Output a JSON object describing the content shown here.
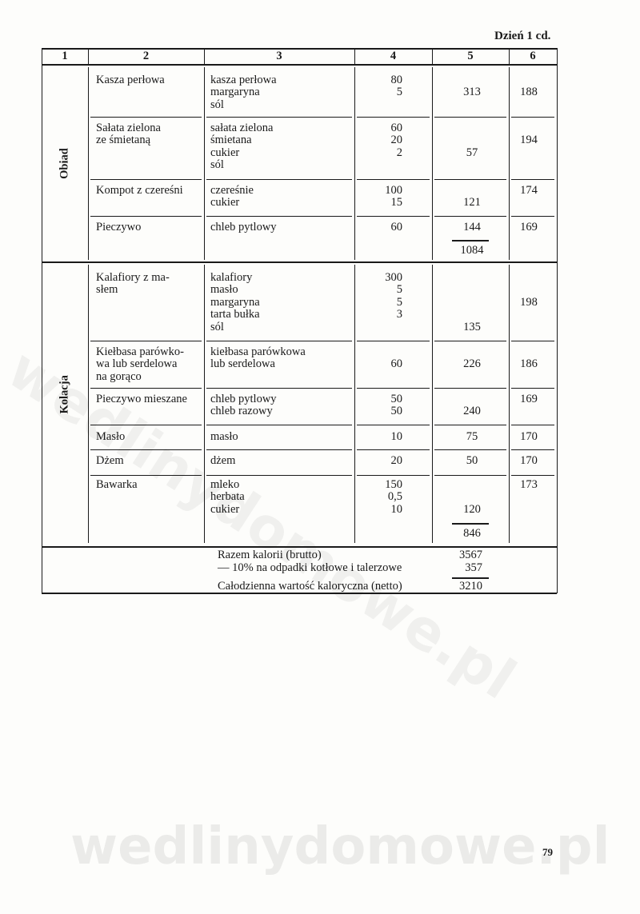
{
  "page_header": "Dzień 1 cd.",
  "page_number": "79",
  "watermark": "wedlinydomowe.pl",
  "columns": [
    "1",
    "2",
    "3",
    "4",
    "5",
    "6"
  ],
  "sections": [
    {
      "meal": "Obiad",
      "rows": [
        {
          "dish": [
            "Kasza perłowa"
          ],
          "ingredients": [
            "kasza perłowa",
            "margaryna",
            "sól"
          ],
          "grams": [
            "80",
            "5"
          ],
          "kcal": "313",
          "col6": "188"
        },
        {
          "dish": [
            "Sałata zielona",
            "ze śmietaną"
          ],
          "ingredients": [
            "sałata zielona",
            "śmietana",
            "cukier",
            "sól"
          ],
          "grams": [
            "60",
            "20",
            "2"
          ],
          "kcal": "57",
          "col6": "194"
        },
        {
          "dish": [
            "Kompot z czereśni"
          ],
          "ingredients": [
            "czereśnie",
            "cukier"
          ],
          "grams": [
            "100",
            "15"
          ],
          "kcal": "121",
          "col6": "174"
        },
        {
          "dish": [
            "Pieczywo"
          ],
          "ingredients": [
            "chleb pytlowy"
          ],
          "grams": [
            "60"
          ],
          "kcal": "144",
          "col6": "169"
        }
      ],
      "subtotal": "1084"
    },
    {
      "meal": "Kolacja",
      "rows": [
        {
          "dish": [
            "Kalafiory z ma-",
            "słem"
          ],
          "ingredients": [
            "kalafiory",
            "masło",
            "margaryna",
            "tarta bułka",
            "sól"
          ],
          "grams": [
            "300",
            "5",
            "5",
            "3"
          ],
          "kcal": "135",
          "col6": "198"
        },
        {
          "dish": [
            "Kiełbasa parówko-",
            "wa lub serdelowa",
            "na gorąco"
          ],
          "ingredients": [
            "kiełbasa parówkowa",
            "lub serdelowa"
          ],
          "grams": [
            "60"
          ],
          "kcal": "226",
          "col6": "186"
        },
        {
          "dish": [
            "Pieczywo mieszane"
          ],
          "ingredients": [
            "chleb pytlowy",
            "chleb razowy"
          ],
          "grams": [
            "50",
            "50"
          ],
          "kcal": "240",
          "col6": "169"
        },
        {
          "dish": [
            "Masło"
          ],
          "ingredients": [
            "masło"
          ],
          "grams": [
            "10"
          ],
          "kcal": "75",
          "col6": "170"
        },
        {
          "dish": [
            "Dżem"
          ],
          "ingredients": [
            "dżem"
          ],
          "grams": [
            "20"
          ],
          "kcal": "50",
          "col6": "170"
        },
        {
          "dish": [
            "Bawarka"
          ],
          "ingredients": [
            "mleko",
            "herbata",
            "cukier"
          ],
          "grams": [
            "150",
            "0,5",
            "10"
          ],
          "kcal": "120",
          "col6": "173"
        }
      ],
      "subtotal": "846"
    }
  ],
  "summary": [
    {
      "label": "Razem kalorii (brutto)",
      "value": "3567"
    },
    {
      "label": "— 10% na odpadki kotłowe i talerzowe",
      "value": "357"
    },
    {
      "label": "Całodzienna wartość kaloryczna (netto)",
      "value": "3210"
    }
  ]
}
